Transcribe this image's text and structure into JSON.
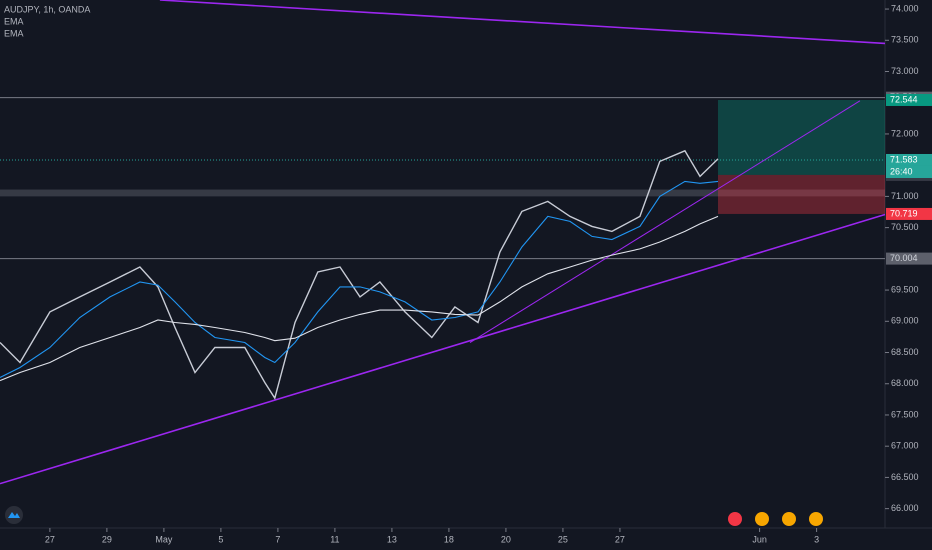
{
  "chart_data": {
    "type": "line",
    "title": "AUDJPY, 1h, OANDA",
    "x": [
      -1.75,
      -1.05,
      0,
      1.05,
      2.11,
      3.16,
      3.79,
      4.39,
      5.09,
      5.79,
      6.84,
      7.54,
      7.89,
      8.6,
      9.4,
      10.18,
      10.88,
      11.58,
      12.46,
      13.4,
      14.21,
      15.02,
      15.79,
      16.56,
      17.47,
      18.25,
      19.02,
      19.72,
      20.7,
      21.4,
      22.28,
      22.81,
      23.44
    ],
    "series": [
      {
        "color": "#c8ccd6",
        "values": [
          68.66,
          68.34,
          69.15,
          69.39,
          69.63,
          69.87,
          69.55,
          68.9,
          68.18,
          68.58,
          68.58,
          68.02,
          67.77,
          68.98,
          69.79,
          69.87,
          69.39,
          69.63,
          69.15,
          68.74,
          69.23,
          68.98,
          70.11,
          70.76,
          70.92,
          70.68,
          70.52,
          70.44,
          70.68,
          71.56,
          71.73,
          71.32,
          71.6
        ]
      },
      {
        "name": "EMA",
        "color": "#2196f3",
        "values": [
          68.1,
          68.26,
          68.58,
          69.06,
          69.39,
          69.63,
          69.58,
          69.31,
          68.98,
          68.74,
          68.66,
          68.42,
          68.34,
          68.66,
          69.15,
          69.55,
          69.55,
          69.47,
          69.31,
          69.02,
          69.06,
          69.15,
          69.63,
          70.19,
          70.68,
          70.6,
          70.36,
          70.31,
          70.52,
          71.0,
          71.24,
          71.21,
          71.24
        ]
      },
      {
        "name": "EMA",
        "color": "#e0e3eb",
        "values": [
          68.05,
          68.18,
          68.34,
          68.58,
          68.74,
          68.9,
          69.02,
          68.98,
          68.95,
          68.9,
          68.82,
          68.74,
          68.69,
          68.73,
          68.9,
          69.02,
          69.11,
          69.18,
          69.18,
          69.15,
          69.11,
          69.1,
          69.31,
          69.55,
          69.76,
          69.87,
          69.98,
          70.06,
          70.16,
          70.27,
          70.44,
          70.56,
          70.68
        ]
      }
    ],
    "xlim": [
      -1.75,
      29.3
    ],
    "ylim": [
      65.69,
      74.145
    ],
    "xticks": [
      {
        "value": 0,
        "label": "27"
      },
      {
        "value": 2,
        "label": "29"
      },
      {
        "value": 4,
        "label": "May"
      },
      {
        "value": 6,
        "label": "5"
      },
      {
        "value": 8,
        "label": "7"
      },
      {
        "value": 10,
        "label": "11"
      },
      {
        "value": 12,
        "label": "13"
      },
      {
        "value": 14,
        "label": "18"
      },
      {
        "value": 16,
        "label": "20"
      },
      {
        "value": 18,
        "label": "25"
      },
      {
        "value": 20,
        "label": "27"
      },
      {
        "value": 24.9,
        "label": "Jun"
      },
      {
        "value": 26.9,
        "label": "3"
      }
    ],
    "yticks": [
      {
        "value": 74,
        "label": "74.000"
      },
      {
        "value": 73.5,
        "label": "73.500"
      },
      {
        "value": 73,
        "label": "73.000"
      },
      {
        "value": 72,
        "label": "72.000"
      },
      {
        "value": 71,
        "label": "71.000"
      },
      {
        "value": 70.5,
        "label": "70.500"
      },
      {
        "value": 69.5,
        "label": "69.500"
      },
      {
        "value": 69,
        "label": "69.000"
      },
      {
        "value": 68.5,
        "label": "68.500"
      },
      {
        "value": 68,
        "label": "68.000"
      },
      {
        "value": 67.5,
        "label": "67.500"
      },
      {
        "value": 67,
        "label": "67.000"
      },
      {
        "value": 66.5,
        "label": "66.500"
      },
      {
        "value": 66,
        "label": "66.000"
      }
    ],
    "grid": false,
    "levels": [
      72.581,
      70.004
    ],
    "zone": [
      71.0,
      71.11
    ],
    "last_price": 71.583,
    "countdown": "26:40",
    "position": {
      "x": 23.44,
      "target": 72.544,
      "entry": 71.344,
      "stop": 70.719
    },
    "trendline_color": "#9c27f0",
    "trendlines": [
      {
        "x": [
          3.86,
          29.3
        ],
        "y": [
          74.145,
          73.45
        ]
      },
      {
        "x": [
          -1.75,
          29.3
        ],
        "y": [
          66.4,
          70.71
        ]
      },
      {
        "x": [
          14.74,
          28.42
        ],
        "y": [
          68.66,
          72.53
        ]
      }
    ]
  }
}
